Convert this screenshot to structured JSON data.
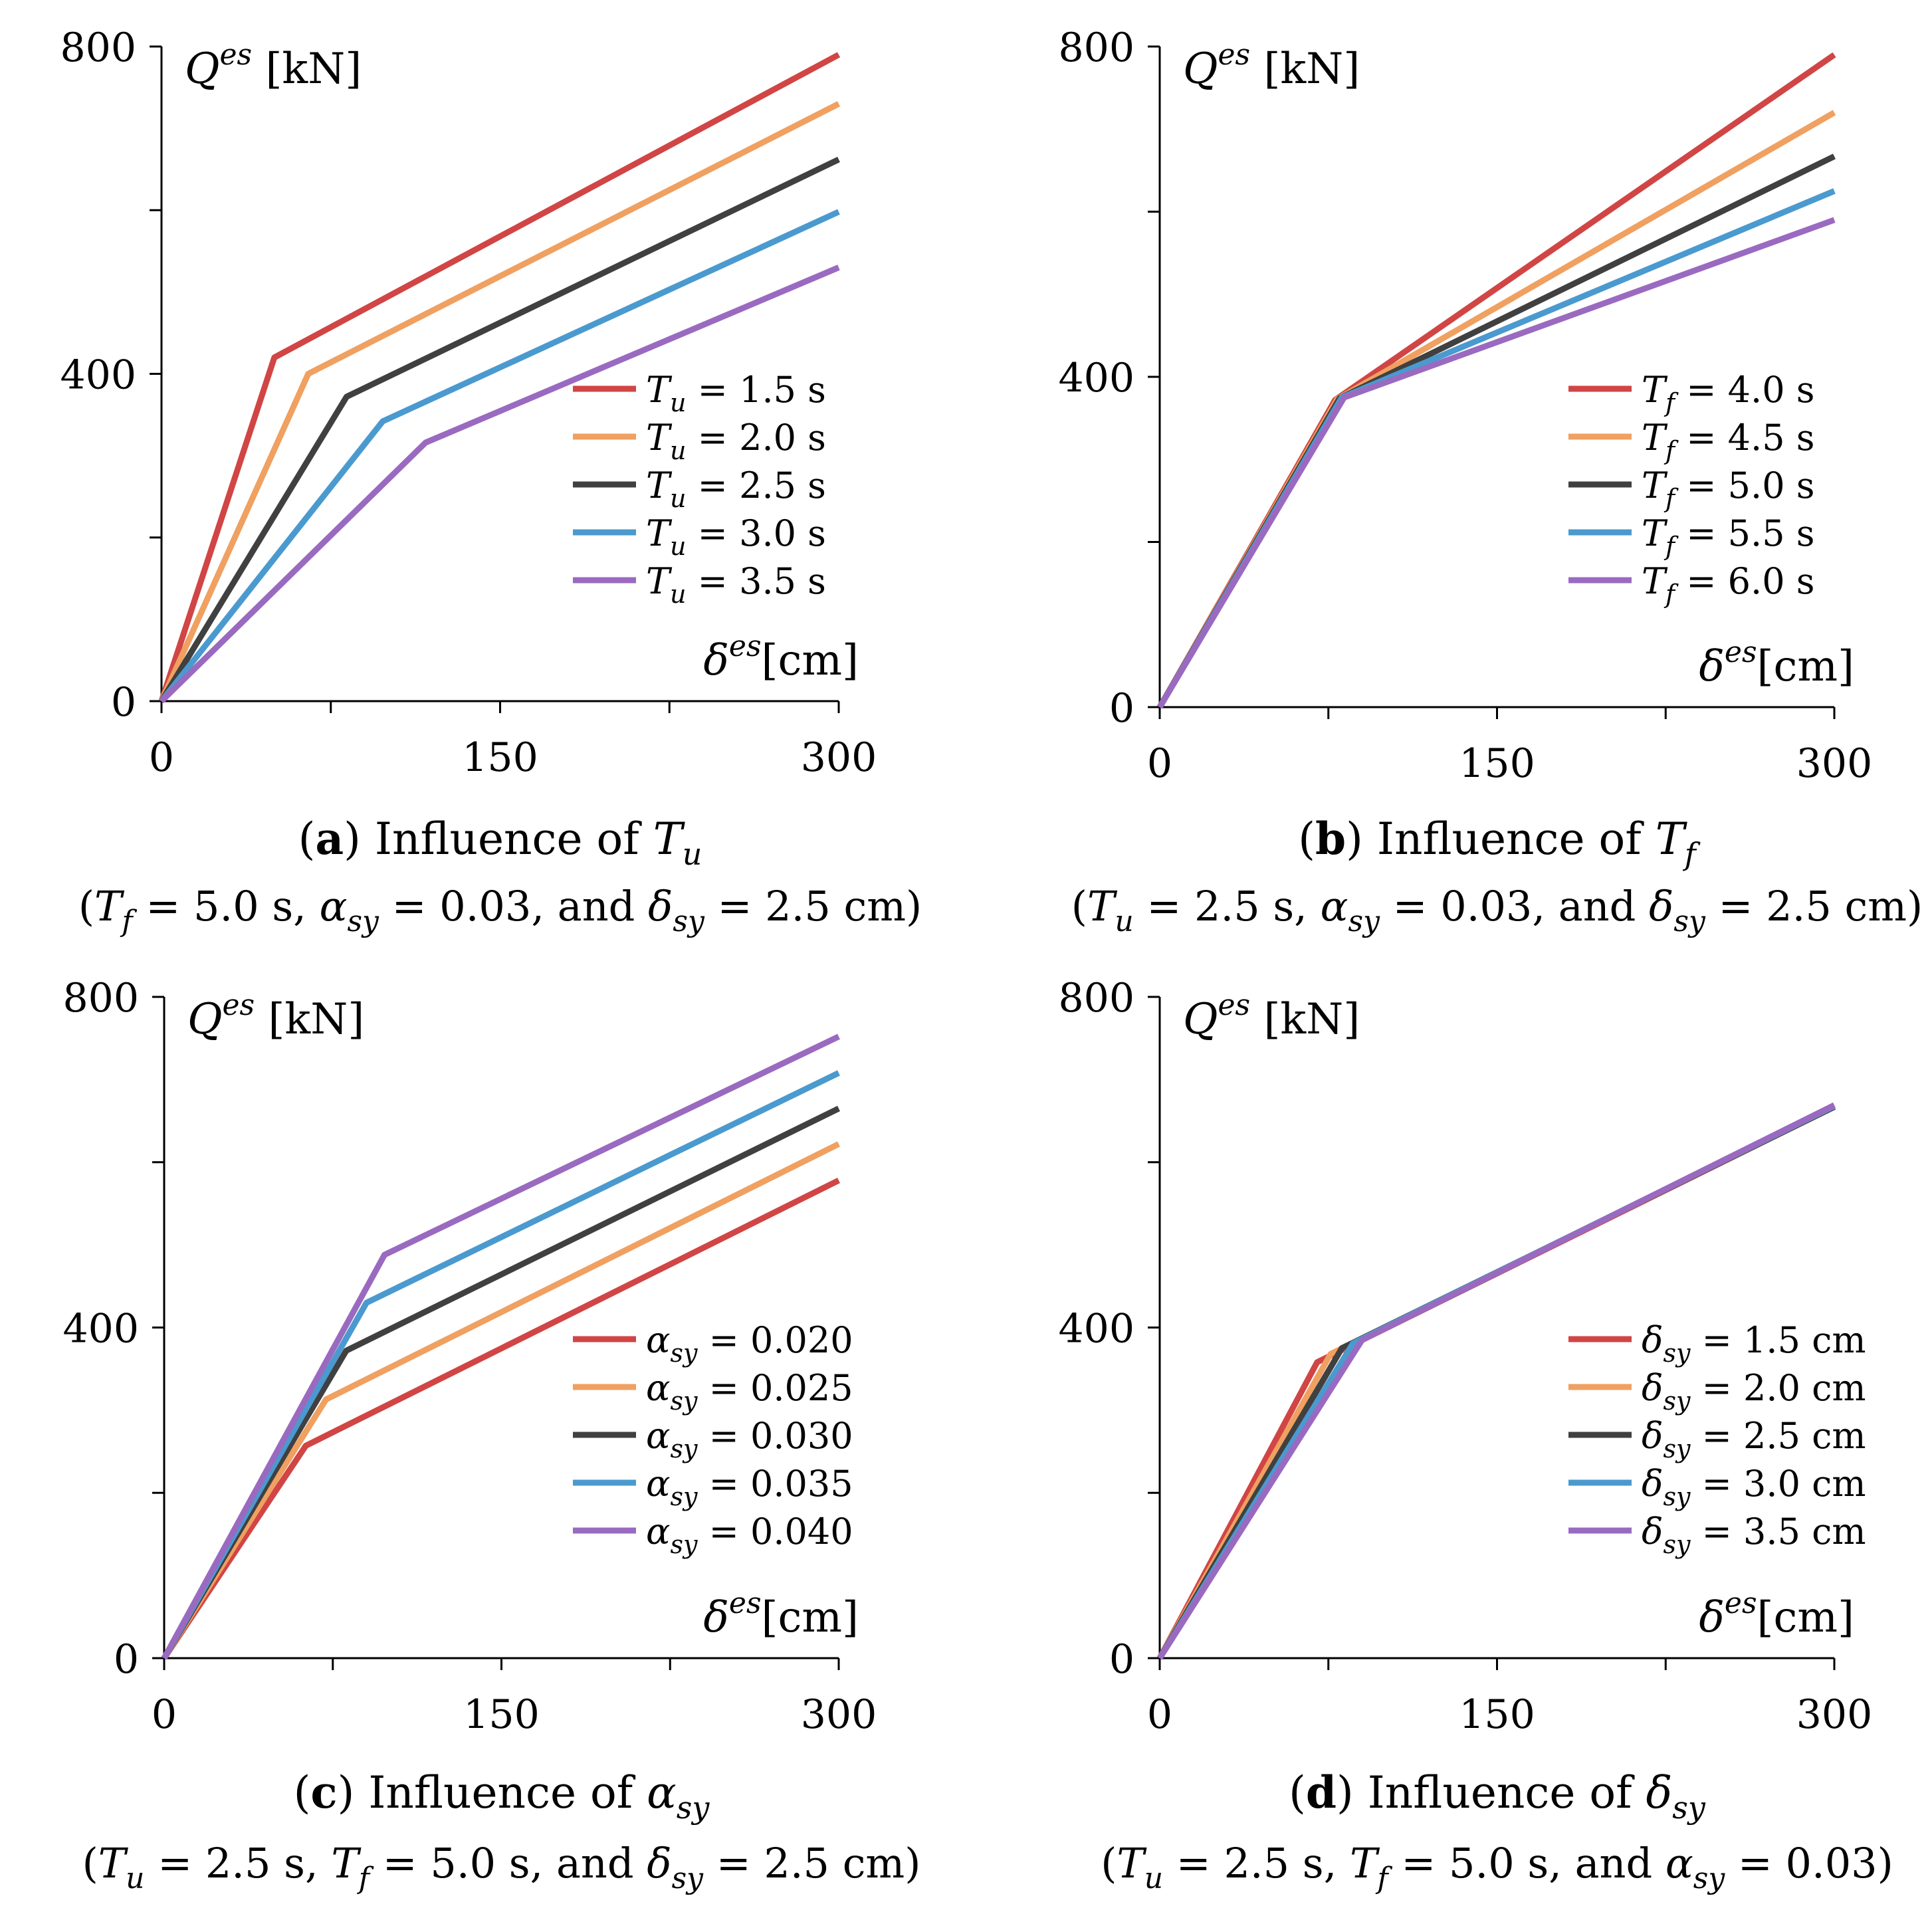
{
  "colors": [
    "#D14545",
    "#F0A060",
    "#404040",
    "#4A9ACF",
    "#9A6AC0"
  ],
  "chart_data": [
    {
      "type": "line",
      "panel_label": "a",
      "caption": "Influence of",
      "caption_symbol": "T",
      "caption_symbol_sub": "u",
      "subcaption": "(T_f = 5.0 s,  α_sy = 0.03, and  δ_sy = 2.5 cm)",
      "ylabel": "Q^es [kN]",
      "ylabel_base": "Q",
      "ylabel_sup": "es",
      "ylabel_unit": "[kN]",
      "xlabel": "δ^es [cm]",
      "xlabel_base": "δ",
      "xlabel_sup": "es",
      "xlabel_unit": "[cm]",
      "xlim": [
        0,
        300
      ],
      "ylim": [
        0,
        800
      ],
      "xticks": [
        0,
        150,
        300
      ],
      "yticks": [
        0,
        400,
        800
      ],
      "legend_position": "lower-right",
      "series": [
        {
          "name": "T_u = 1.5 s",
          "sym": "T",
          "sub": "u",
          "rest": " = 1.5 s",
          "x": [
            0,
            50,
            300
          ],
          "y": [
            0,
            420,
            790
          ]
        },
        {
          "name": "T_u = 2.0 s",
          "sym": "T",
          "sub": "u",
          "rest": " = 2.0 s",
          "x": [
            0,
            65,
            300
          ],
          "y": [
            0,
            400,
            730
          ]
        },
        {
          "name": "T_u = 2.5 s",
          "sym": "T",
          "sub": "u",
          "rest": " = 2.5 s",
          "x": [
            0,
            82,
            300
          ],
          "y": [
            0,
            372,
            662
          ]
        },
        {
          "name": "T_u = 3.0 s",
          "sym": "T",
          "sub": "u",
          "rest": " = 3.0 s",
          "x": [
            0,
            98,
            300
          ],
          "y": [
            0,
            342,
            598
          ]
        },
        {
          "name": "T_u = 3.5 s",
          "sym": "T",
          "sub": "u",
          "rest": " = 3.5 s",
          "x": [
            0,
            117,
            300
          ],
          "y": [
            0,
            316,
            530
          ]
        }
      ]
    },
    {
      "type": "line",
      "panel_label": "b",
      "caption": "Influence of",
      "caption_symbol": "T",
      "caption_symbol_sub": "f",
      "subcaption": "(T_u = 2.5 s,  α_sy = 0.03, and  δ_sy = 2.5 cm)",
      "ylabel": "Q^es [kN]",
      "ylabel_base": "Q",
      "ylabel_sup": "es",
      "ylabel_unit": "[kN]",
      "xlabel": "δ^es [cm]",
      "xlabel_base": "δ",
      "xlabel_sup": "es",
      "xlabel_unit": "[cm]",
      "xlim": [
        0,
        300
      ],
      "ylim": [
        0,
        800
      ],
      "xticks": [
        0,
        150,
        300
      ],
      "yticks": [
        0,
        400,
        800
      ],
      "legend_position": "lower-right",
      "series": [
        {
          "name": "T_f = 4.0 s",
          "sym": "T",
          "sub": "f",
          "rest": " = 4.0 s",
          "x": [
            0,
            78,
            300
          ],
          "y": [
            0,
            372,
            790
          ]
        },
        {
          "name": "T_f = 4.5 s",
          "sym": "T",
          "sub": "f",
          "rest": " = 4.5 s",
          "x": [
            0,
            79,
            300
          ],
          "y": [
            0,
            373,
            720
          ]
        },
        {
          "name": "T_f = 5.0 s",
          "sym": "T",
          "sub": "f",
          "rest": " = 5.0 s",
          "x": [
            0,
            80,
            300
          ],
          "y": [
            0,
            374,
            667
          ]
        },
        {
          "name": "T_f = 5.5 s",
          "sym": "T",
          "sub": "f",
          "rest": " = 5.5 s",
          "x": [
            0,
            81,
            300
          ],
          "y": [
            0,
            375,
            625
          ]
        },
        {
          "name": "T_f = 6.0 s",
          "sym": "T",
          "sub": "f",
          "rest": " = 6.0 s",
          "x": [
            0,
            82,
            300
          ],
          "y": [
            0,
            375,
            590
          ]
        }
      ]
    },
    {
      "type": "line",
      "panel_label": "c",
      "caption": "Influence of",
      "caption_symbol": "α",
      "caption_symbol_sub": "sy",
      "subcaption": "(T_u = 2.5 s,  T_f = 5.0 s, and  δ_sy = 2.5 cm)",
      "ylabel": "Q^es [kN]",
      "ylabel_base": "Q",
      "ylabel_sup": "es",
      "ylabel_unit": "[kN]",
      "xlabel": "δ^es [cm]",
      "xlabel_base": "δ",
      "xlabel_sup": "es",
      "xlabel_unit": "[cm]",
      "xlim": [
        0,
        300
      ],
      "ylim": [
        0,
        800
      ],
      "xticks": [
        0,
        150,
        300
      ],
      "yticks": [
        0,
        400,
        800
      ],
      "legend_position": "lower-right",
      "series": [
        {
          "name": "α_sy = 0.020",
          "sym": "α",
          "sub": "sy",
          "rest": " = 0.020",
          "x": [
            0,
            63,
            300
          ],
          "y": [
            0,
            257,
            578
          ]
        },
        {
          "name": "α_sy = 0.025",
          "sym": "α",
          "sub": "sy",
          "rest": " = 0.025",
          "x": [
            0,
            72,
            300
          ],
          "y": [
            0,
            313,
            622
          ]
        },
        {
          "name": "α_sy = 0.030",
          "sym": "α",
          "sub": "sy",
          "rest": " = 0.030",
          "x": [
            0,
            81,
            300
          ],
          "y": [
            0,
            372,
            665
          ]
        },
        {
          "name": "α_sy = 0.035",
          "sym": "α",
          "sub": "sy",
          "rest": " = 0.035",
          "x": [
            0,
            90,
            300
          ],
          "y": [
            0,
            430,
            708
          ]
        },
        {
          "name": "α_sy = 0.040",
          "sym": "α",
          "sub": "sy",
          "rest": " = 0.040",
          "x": [
            0,
            98,
            300
          ],
          "y": [
            0,
            488,
            752
          ]
        }
      ]
    },
    {
      "type": "line",
      "panel_label": "d",
      "caption": "Influence of",
      "caption_symbol": "δ",
      "caption_symbol_sub": "sy",
      "subcaption": "(T_u = 2.5 s,  T_f = 5.0 s, and  α_sy = 0.03)",
      "ylabel": "Q^es [kN]",
      "ylabel_base": "Q",
      "ylabel_sup": "es",
      "ylabel_unit": "[kN]",
      "xlabel": "δ^es [cm]",
      "xlabel_base": "δ",
      "xlabel_sup": "es",
      "xlabel_unit": "[cm]",
      "xlim": [
        0,
        300
      ],
      "ylim": [
        0,
        800
      ],
      "xticks": [
        0,
        150,
        300
      ],
      "yticks": [
        0,
        400,
        800
      ],
      "legend_position": "lower-right",
      "series": [
        {
          "name": "δ_sy = 1.5 cm",
          "sym": "δ",
          "sub": "sy",
          "rest": " = 1.5 cm",
          "x": [
            0,
            70,
            300
          ],
          "y": [
            0,
            358,
            667
          ]
        },
        {
          "name": "δ_sy = 2.0 cm",
          "sym": "δ",
          "sub": "sy",
          "rest": " = 2.0 cm",
          "x": [
            0,
            76,
            300
          ],
          "y": [
            0,
            368,
            667
          ]
        },
        {
          "name": "δ_sy = 2.5 cm",
          "sym": "δ",
          "sub": "sy",
          "rest": " = 2.5 cm",
          "x": [
            0,
            81,
            300
          ],
          "y": [
            0,
            375,
            667
          ]
        },
        {
          "name": "δ_sy = 3.0 cm",
          "sym": "δ",
          "sub": "sy",
          "rest": " = 3.0 cm",
          "x": [
            0,
            86,
            300
          ],
          "y": [
            0,
            381,
            668
          ]
        },
        {
          "name": "δ_sy = 3.5 cm",
          "sym": "δ",
          "sub": "sy",
          "rest": " = 3.5 cm",
          "x": [
            0,
            90,
            300
          ],
          "y": [
            0,
            385,
            669
          ]
        }
      ]
    }
  ]
}
